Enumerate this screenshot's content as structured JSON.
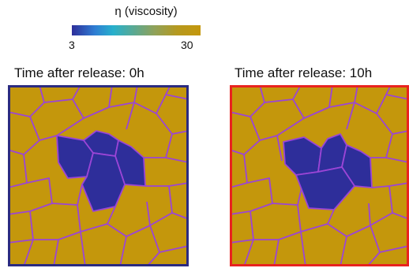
{
  "colorbar": {
    "title": "η (viscosity)",
    "min_label": "3",
    "max_label": "30",
    "low_color": "#2e2e9a",
    "high_color": "#c4970c"
  },
  "panels": [
    {
      "title": "Time after release: 0h",
      "frame_color": "#2b2b80",
      "cell_color": "#c4970c",
      "low_viscosity_color": "#2e2e9a",
      "edge_color": "#9b45d6"
    },
    {
      "title": "Time after release: 10h",
      "frame_color": "#e8231f",
      "cell_color": "#c4970c",
      "low_viscosity_color": "#2e2e9a",
      "edge_color": "#9b45d6"
    }
  ]
}
